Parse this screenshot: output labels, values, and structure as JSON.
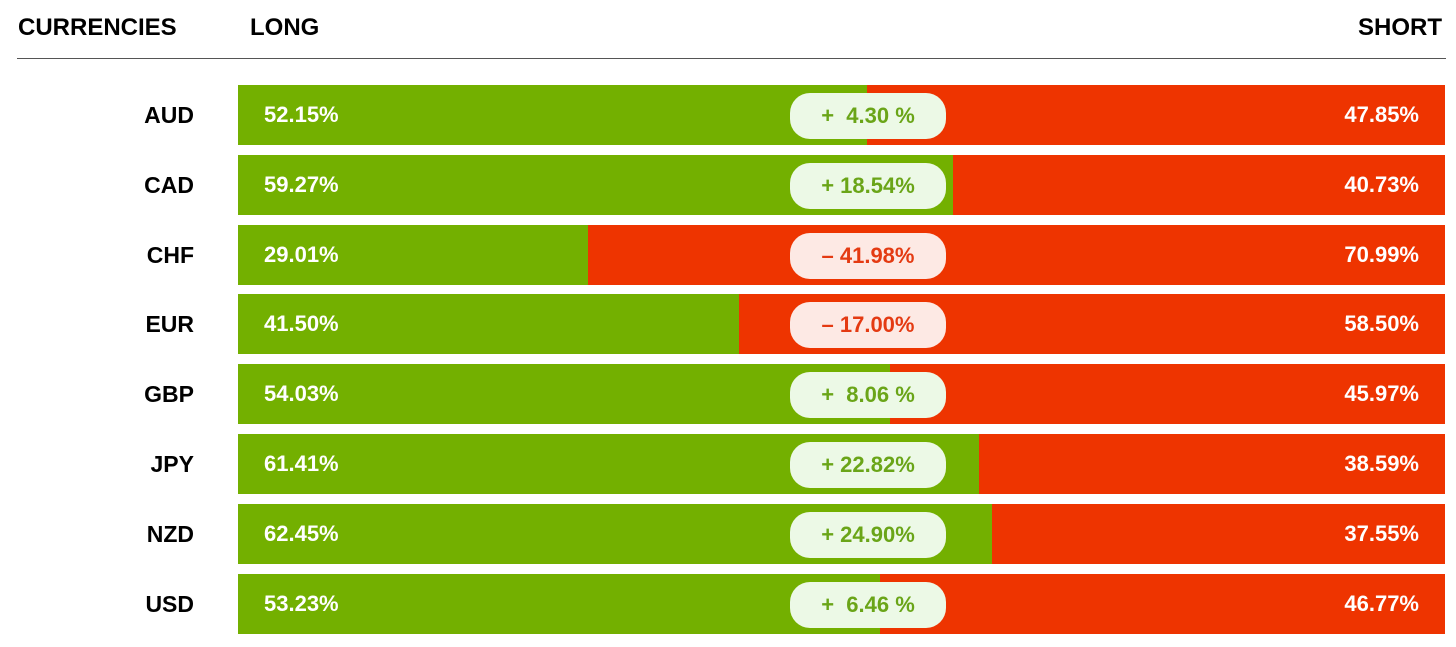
{
  "header": {
    "currencies": "CURRENCIES",
    "long": "LONG",
    "short": "SHORT"
  },
  "colors": {
    "long": "#73b000",
    "short": "#ee3400",
    "pill_positive_bg": "#ecf9e6",
    "pill_positive_text": "#6aa518",
    "pill_negative_bg": "#fde9e4",
    "pill_negative_text": "#e43a12"
  },
  "chart_data": {
    "type": "bar",
    "stacked": true,
    "orientation": "horizontal",
    "categories": [
      "AUD",
      "CAD",
      "CHF",
      "EUR",
      "GBP",
      "JPY",
      "NZD",
      "USD"
    ],
    "series": [
      {
        "name": "LONG",
        "values": [
          52.15,
          59.27,
          29.01,
          41.5,
          54.03,
          61.41,
          62.45,
          53.23
        ]
      },
      {
        "name": "SHORT",
        "values": [
          47.85,
          40.73,
          70.99,
          58.5,
          45.97,
          38.59,
          37.55,
          46.77
        ]
      }
    ],
    "rows": [
      {
        "currency": "AUD",
        "long": 52.15,
        "short": 47.85,
        "long_label": "52.15%",
        "short_label": "47.85%",
        "net_label": "+  4.30 %",
        "net": 4.3
      },
      {
        "currency": "CAD",
        "long": 59.27,
        "short": 40.73,
        "long_label": "59.27%",
        "short_label": "40.73%",
        "net_label": "+ 18.54%",
        "net": 18.54
      },
      {
        "currency": "CHF",
        "long": 29.01,
        "short": 70.99,
        "long_label": "29.01%",
        "short_label": "70.99%",
        "net_label": "– 41.98%",
        "net": -41.98
      },
      {
        "currency": "EUR",
        "long": 41.5,
        "short": 58.5,
        "long_label": "41.50%",
        "short_label": "58.50%",
        "net_label": "– 17.00%",
        "net": -17.0
      },
      {
        "currency": "GBP",
        "long": 54.03,
        "short": 45.97,
        "long_label": "54.03%",
        "short_label": "45.97%",
        "net_label": "+  8.06 %",
        "net": 8.06
      },
      {
        "currency": "JPY",
        "long": 61.41,
        "short": 38.59,
        "long_label": "61.41%",
        "short_label": "38.59%",
        "net_label": "+ 22.82%",
        "net": 22.82
      },
      {
        "currency": "NZD",
        "long": 62.45,
        "short": 37.55,
        "long_label": "62.45%",
        "short_label": "37.55%",
        "net_label": "+ 24.90%",
        "net": 24.9
      },
      {
        "currency": "USD",
        "long": 53.23,
        "short": 46.77,
        "long_label": "53.23%",
        "short_label": "46.77%",
        "net_label": "+  6.46 %",
        "net": 6.46
      }
    ]
  }
}
